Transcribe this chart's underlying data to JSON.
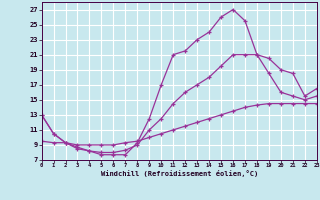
{
  "xlabel": "Windchill (Refroidissement éolien,°C)",
  "bg_color": "#c8e8ee",
  "line_color": "#993399",
  "grid_color": "#ffffff",
  "xlim": [
    0,
    23
  ],
  "ylim": [
    7,
    28
  ],
  "yticks": [
    7,
    9,
    11,
    13,
    15,
    17,
    19,
    21,
    23,
    25,
    27
  ],
  "xticks": [
    0,
    1,
    2,
    3,
    4,
    5,
    6,
    7,
    8,
    9,
    10,
    11,
    12,
    13,
    14,
    15,
    16,
    17,
    18,
    19,
    20,
    21,
    22,
    23
  ],
  "line1_x": [
    0,
    1,
    2,
    3,
    4,
    5,
    6,
    7,
    8,
    9,
    10,
    11,
    12,
    13,
    14,
    15,
    16,
    17,
    18,
    19,
    20,
    21,
    22,
    23
  ],
  "line1_y": [
    13,
    10.5,
    9.3,
    8.7,
    8.2,
    7.7,
    7.7,
    7.7,
    9.3,
    12.5,
    17.0,
    21.0,
    21.5,
    23.0,
    24.0,
    26.0,
    27.0,
    25.5,
    21.0,
    18.5,
    16.0,
    15.5,
    15.0,
    15.5
  ],
  "line2_x": [
    0,
    1,
    2,
    3,
    4,
    5,
    6,
    7,
    8,
    9,
    10,
    11,
    12,
    13,
    14,
    15,
    16,
    17,
    18,
    19,
    20,
    21,
    22,
    23
  ],
  "line2_y": [
    13.0,
    10.5,
    9.3,
    8.5,
    8.2,
    8.0,
    8.0,
    8.3,
    9.0,
    11.0,
    12.5,
    14.5,
    16.0,
    17.0,
    18.0,
    19.5,
    21.0,
    21.0,
    21.0,
    20.5,
    19.0,
    18.5,
    15.5,
    16.5
  ],
  "line3_x": [
    0,
    1,
    2,
    3,
    4,
    5,
    6,
    7,
    8,
    9,
    10,
    11,
    12,
    13,
    14,
    15,
    16,
    17,
    18,
    19,
    20,
    21,
    22,
    23
  ],
  "line3_y": [
    9.5,
    9.3,
    9.3,
    9.0,
    9.0,
    9.0,
    9.0,
    9.3,
    9.5,
    10.0,
    10.5,
    11.0,
    11.5,
    12.0,
    12.5,
    13.0,
    13.5,
    14.0,
    14.3,
    14.5,
    14.5,
    14.5,
    14.5,
    14.5
  ]
}
